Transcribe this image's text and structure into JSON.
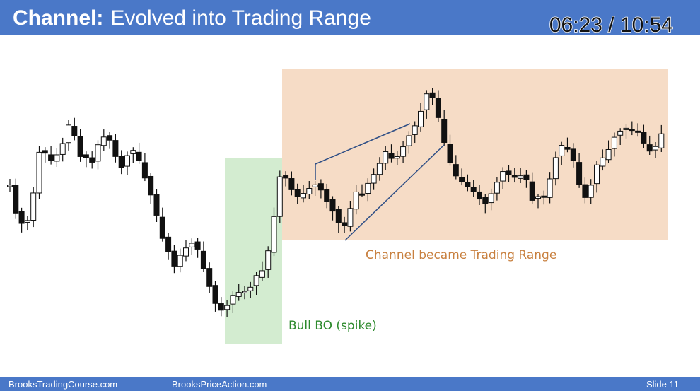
{
  "header": {
    "title_bold": "Channel:",
    "title_rest": "Evolved into Trading Range",
    "timestamp": "06:23 / 10:54"
  },
  "annotations": {
    "trading_range": "Channel became Trading Range",
    "spike": "Bull BO (spike)"
  },
  "footer": {
    "left": "BrooksTradingCourse.com",
    "middle": "BrooksPriceAction.com",
    "slide": "Slide 11"
  }
}
